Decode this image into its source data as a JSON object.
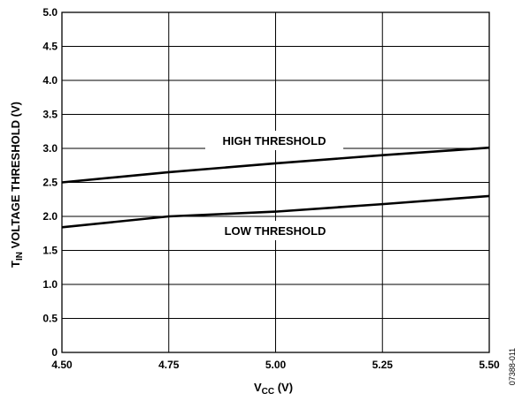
{
  "chart_data": {
    "type": "line",
    "xlabel": {
      "main": "V",
      "sub": "CC",
      "tail": " (V)"
    },
    "ylabel": {
      "main": "T",
      "sub": "IN",
      "tail": " VOLTAGE THRESHOLD (V)"
    },
    "xlim": [
      4.5,
      5.5
    ],
    "ylim": [
      0,
      5.0
    ],
    "x_ticks": [
      4.5,
      4.75,
      5.0,
      5.25,
      5.5
    ],
    "x_tick_labels": [
      "4.50",
      "4.75",
      "5.00",
      "5.25",
      "5.50"
    ],
    "y_ticks": [
      0,
      0.5,
      1.0,
      1.5,
      2.0,
      2.5,
      3.0,
      3.5,
      4.0,
      4.5,
      5.0
    ],
    "y_tick_labels": [
      "0",
      "0.5",
      "1.0",
      "1.5",
      "2.0",
      "2.5",
      "3.0",
      "3.5",
      "4.0",
      "4.5",
      "5.0"
    ],
    "grid": true,
    "series": [
      {
        "name": "HIGH THRESHOLD",
        "x": [
          4.5,
          4.75,
          5.0,
          5.25,
          5.5
        ],
        "values": [
          2.5,
          2.65,
          2.78,
          2.9,
          3.01
        ]
      },
      {
        "name": "LOW THRESHOLD",
        "x": [
          4.5,
          4.75,
          5.0,
          5.25,
          5.5
        ],
        "values": [
          1.84,
          2.0,
          2.07,
          2.18,
          2.3
        ]
      }
    ],
    "annotations": [
      "HIGH THRESHOLD",
      "LOW THRESHOLD"
    ],
    "figure_id": "07388-011"
  }
}
